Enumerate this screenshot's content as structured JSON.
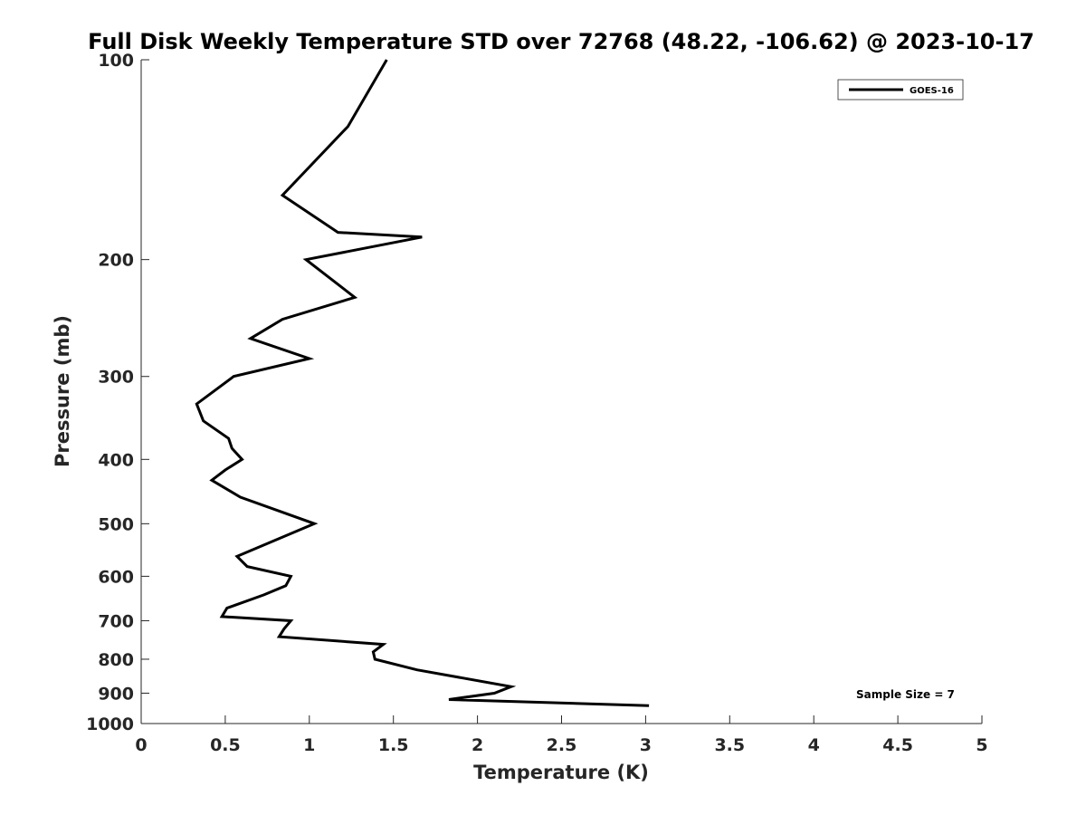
{
  "chart_data": {
    "type": "line",
    "title": "Full Disk Weekly Temperature STD over 72768 (48.22, -106.62) @ 2023-10-17",
    "xlabel": "Temperature (K)",
    "ylabel": "Pressure (mb)",
    "xlim": [
      0,
      5
    ],
    "ylim": [
      1000,
      100
    ],
    "yscale": "log",
    "y_reversed": true,
    "xticks": [
      0,
      0.5,
      1,
      1.5,
      2,
      2.5,
      3,
      3.5,
      4,
      4.5,
      5
    ],
    "xtick_labels": [
      "0",
      "0.5",
      "1",
      "1.5",
      "2",
      "2.5",
      "3",
      "3.5",
      "4",
      "4.5",
      "5"
    ],
    "yticks": [
      100,
      200,
      300,
      400,
      500,
      600,
      700,
      800,
      900,
      1000
    ],
    "ytick_labels": [
      "100",
      "200",
      "300",
      "400",
      "500",
      "600",
      "700",
      "800",
      "900",
      "1000"
    ],
    "grid": false,
    "legend_position": "top-right",
    "annotation": "Sample Size = 7",
    "series": [
      {
        "name": "GOES-16",
        "color": "#000000",
        "x": [
          1.46,
          1.23,
          0.84,
          1.17,
          1.67,
          0.98,
          1.27,
          0.84,
          0.65,
          1.0,
          0.55,
          0.33,
          0.37,
          0.52,
          0.54,
          0.6,
          0.5,
          0.42,
          0.59,
          1.03,
          0.57,
          0.63,
          0.89,
          0.86,
          0.73,
          0.51,
          0.48,
          0.89,
          0.85,
          0.82,
          1.44,
          1.38,
          1.39,
          1.64,
          2.2,
          2.1,
          1.83,
          3.02
        ],
        "y": [
          100,
          126,
          160,
          182,
          185,
          200,
          228,
          246,
          263,
          282,
          300,
          330,
          350,
          372,
          385,
          400,
          415,
          430,
          456,
          500,
          560,
          580,
          600,
          620,
          640,
          670,
          690,
          700,
          720,
          740,
          760,
          780,
          800,
          830,
          880,
          900,
          920,
          940
        ]
      }
    ]
  }
}
